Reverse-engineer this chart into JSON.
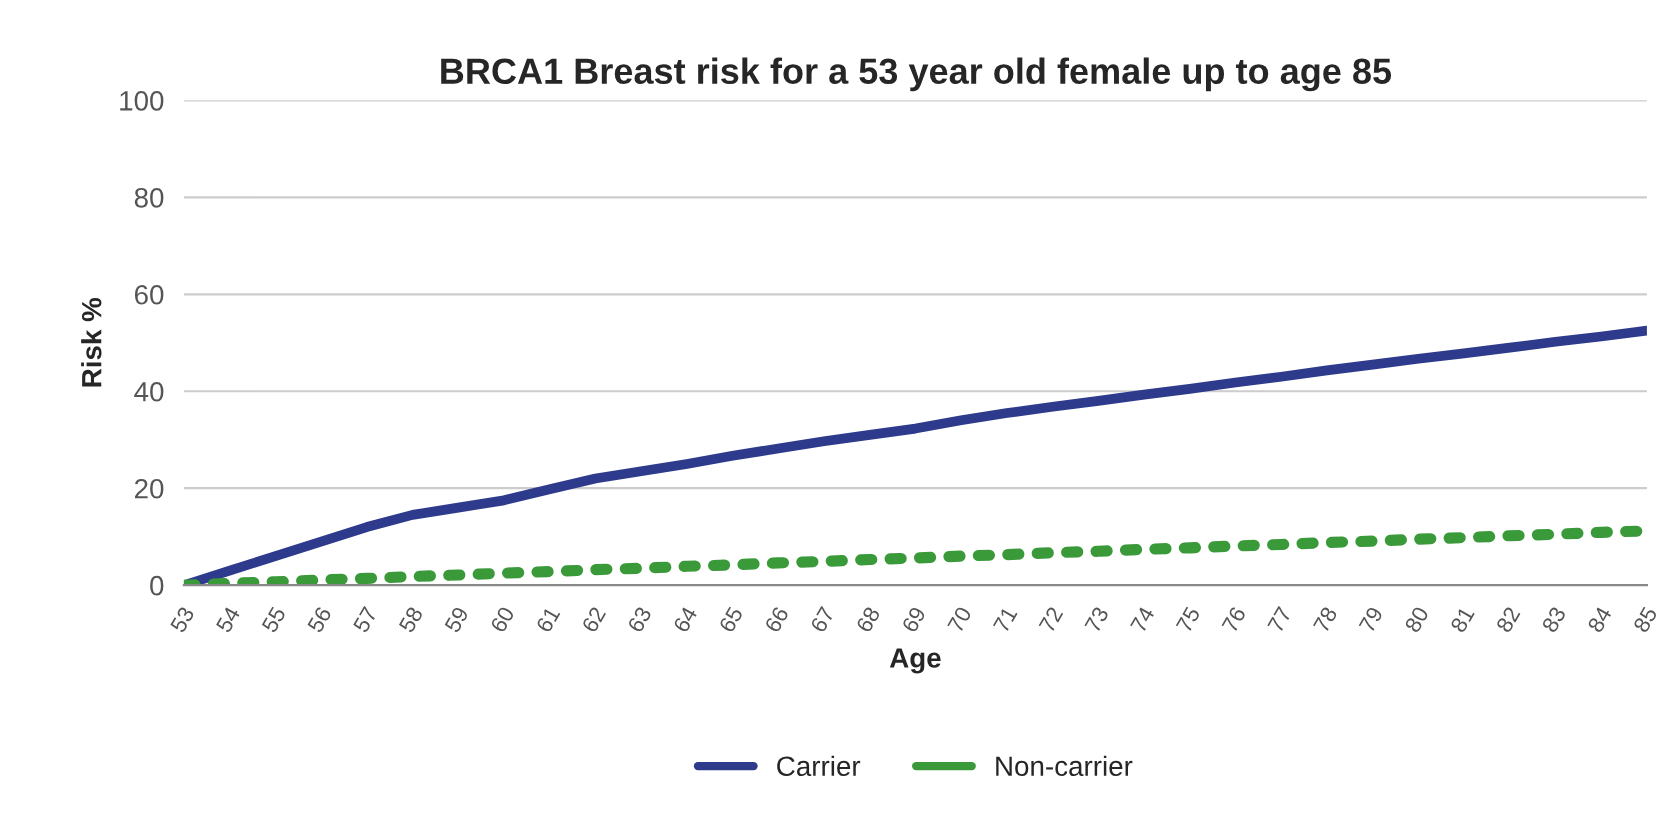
{
  "chart_data": {
    "type": "line",
    "title": "BRCA1 Breast risk for a 53 year old female up to age 85",
    "xlabel": "Age",
    "ylabel": "Risk %",
    "categories": [
      "53",
      "54",
      "55",
      "56",
      "57",
      "58",
      "59",
      "60",
      "61",
      "62",
      "63",
      "64",
      "65",
      "66",
      "67",
      "68",
      "69",
      "70",
      "71",
      "72",
      "73",
      "74",
      "75",
      "76",
      "77",
      "78",
      "79",
      "80",
      "81",
      "82",
      "83",
      "84",
      "85"
    ],
    "series": [
      {
        "name": "Carrier",
        "color": "#2e3a8c",
        "line_style": "solid",
        "values": [
          0,
          3,
          6,
          9,
          12,
          14.5,
          16,
          17.5,
          19.8,
          22,
          23.5,
          25,
          26.7,
          28.2,
          29.7,
          31,
          32.3,
          34,
          35.5,
          36.8,
          38,
          39.3,
          40.5,
          41.8,
          43,
          44.3,
          45.5,
          46.7,
          47.8,
          49,
          50.2,
          51.3,
          52.5
        ]
      },
      {
        "name": "Non-carrier",
        "color": "#3a9a3a",
        "line_style": "dotted",
        "values": [
          0,
          0.4,
          0.7,
          1.1,
          1.4,
          1.8,
          2.1,
          2.5,
          2.8,
          3.2,
          3.5,
          3.9,
          4.2,
          4.6,
          4.9,
          5.3,
          5.6,
          6,
          6.3,
          6.7,
          7,
          7.4,
          7.7,
          8.1,
          8.4,
          8.8,
          9.1,
          9.5,
          9.8,
          10.2,
          10.5,
          10.9,
          11.2
        ]
      }
    ],
    "ylim": [
      0,
      100
    ],
    "yticks": [
      0,
      20,
      40,
      60,
      80,
      100
    ],
    "grid": "y",
    "legend": "bottom"
  }
}
